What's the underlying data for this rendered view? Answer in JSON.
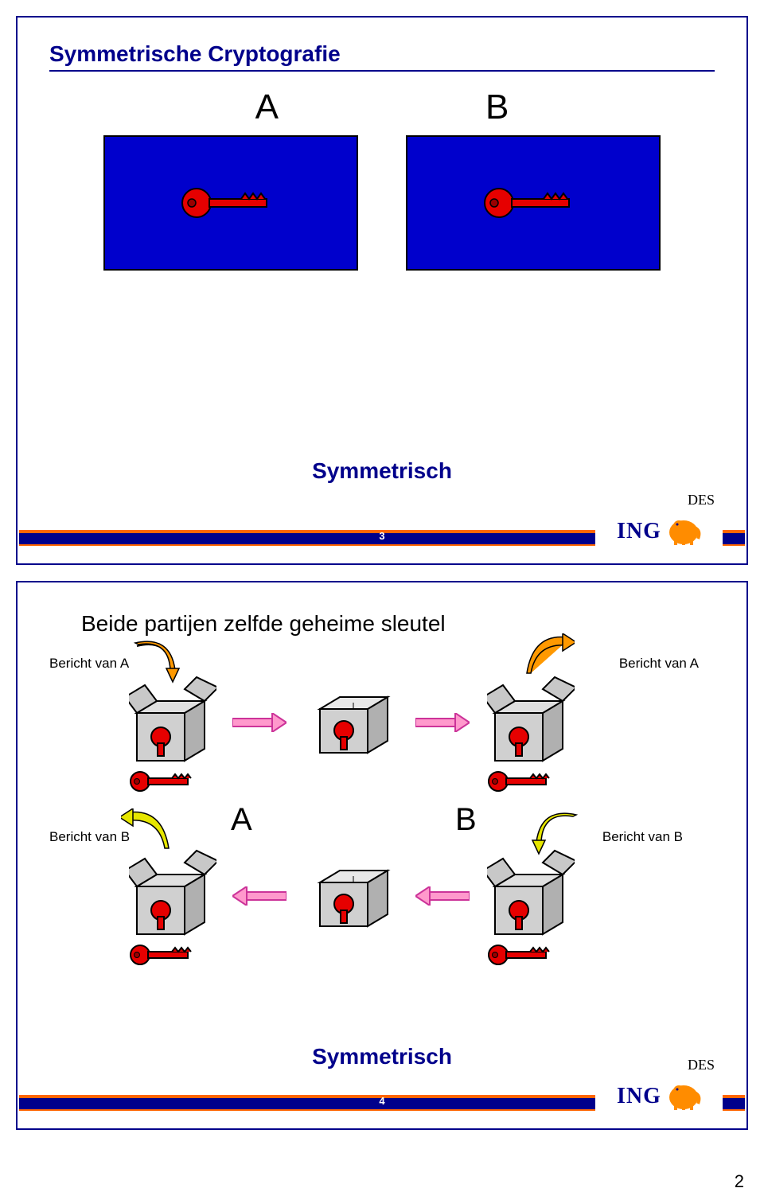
{
  "page_number": "2",
  "colors": {
    "deep_blue": "#00008b",
    "panel_blue": "#0000cc",
    "orange": "#ff6600",
    "red": "#e60000",
    "red_dark": "#990000",
    "pink_arrow": "#ff99cc",
    "pink_arrow_border": "#cc3399",
    "box_grey": "#d0d0d0",
    "box_grey_dark": "#b0b0b0",
    "curve_orange": "#ff9900",
    "curve_yellow": "#e6e600",
    "lion_orange": "#ff8c00"
  },
  "slide1": {
    "title": "Symmetrische Cryptografie",
    "label_a": "A",
    "label_b": "B",
    "subtitle": "Symmetrisch",
    "footer_num": "3",
    "algo": "DES",
    "logo_text": "ING"
  },
  "slide2": {
    "heading": "Beide partijen zelfde geheime sleutel",
    "msg_a_left": "Bericht van A",
    "msg_a_right": "Bericht van A",
    "msg_b_left": "Bericht van B",
    "msg_b_right": "Bericht van B",
    "label_a": "A",
    "label_b": "B",
    "subtitle": "Symmetrisch",
    "footer_num": "4",
    "algo": "DES",
    "logo_text": "ING"
  }
}
